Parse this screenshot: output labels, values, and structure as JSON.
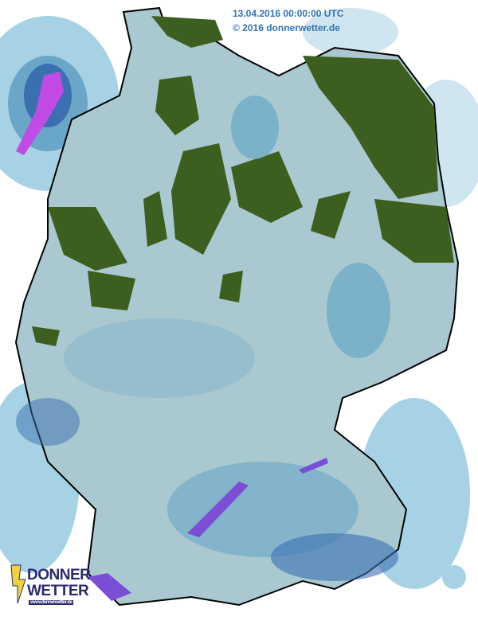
{
  "header": {
    "timestamp": "13.04.2016 00:00:00 UTC",
    "copyright": "© 2016 donnerwetter.de"
  },
  "logo": {
    "line1": "DONNER",
    "line2": "WETTER",
    "url": "www.donnerwetter.de"
  },
  "map": {
    "region": "Germany",
    "colors": {
      "land": "#a9c8cf",
      "forest_green": "#3c5e1e",
      "precip_light": "#a7d2e6",
      "precip_medium": "#6aa6c8",
      "precip_heavy": "#3a6fb0",
      "precip_intense": "#7a4fd6",
      "precip_extreme": "#c24be6",
      "border": "#000000"
    }
  }
}
